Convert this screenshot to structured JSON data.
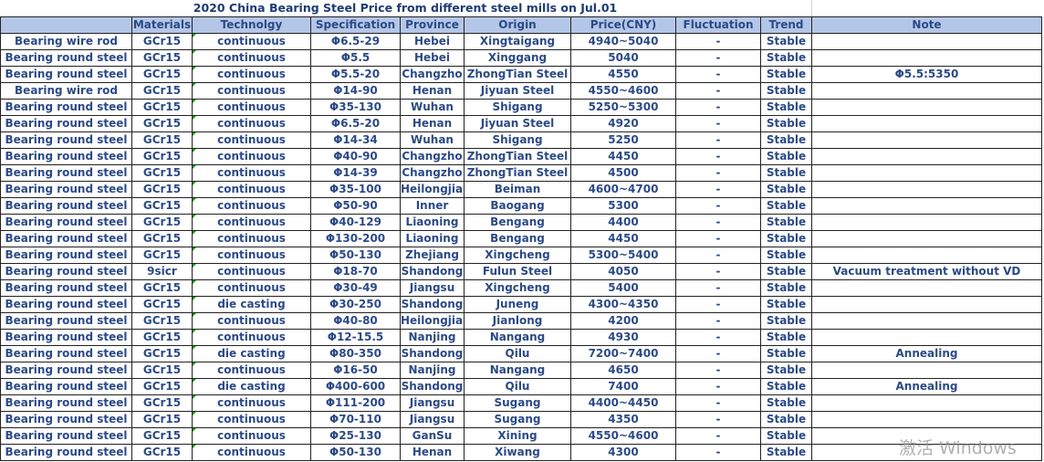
{
  "title": "2020 China Bearing Steel Price from different steel mills on  Jul.01",
  "headers": [
    "",
    "Materials",
    "Technolgy",
    "Specification",
    "Province",
    "Origin",
    "Price(CNY)",
    "Fluctuation",
    "Trend",
    "Note"
  ],
  "rows": [
    [
      "Bearing wire rod",
      "GCr15",
      "continuous",
      "Φ6.5-29",
      "Hebei",
      "Xingtaigang",
      "4940~5040",
      "-",
      "Stable",
      ""
    ],
    [
      "Bearing round steel",
      "GCr15",
      "continuous",
      "Φ5.5",
      "Hebei",
      "Xinggang",
      "5040",
      "-",
      "Stable",
      ""
    ],
    [
      "Bearing round steel",
      "GCr15",
      "continuous",
      "Φ5.5-20",
      "Changzho",
      "ZhongTian Steel",
      "4550",
      "-",
      "Stable",
      "Φ5.5:5350"
    ],
    [
      "Bearing wire rod",
      "GCr15",
      "continuous",
      "Φ14-90",
      "Henan",
      "Jiyuan Steel",
      "4550~4600",
      "-",
      "Stable",
      ""
    ],
    [
      "Bearing round steel",
      "GCr15",
      "continuous",
      "Φ35-130",
      "Wuhan",
      "Shigang",
      "5250~5300",
      "-",
      "Stable",
      ""
    ],
    [
      "Bearing round steel",
      "GCr15",
      "continuous",
      "Φ6.5-20",
      "Henan",
      "Jiyuan Steel",
      "4920",
      "-",
      "Stable",
      ""
    ],
    [
      "Bearing round steel",
      "GCr15",
      "continuous",
      "Φ14-34",
      "Wuhan",
      "Shigang",
      "5250",
      "-",
      "Stable",
      ""
    ],
    [
      "Bearing round steel",
      "GCr15",
      "continuous",
      "Φ40-90",
      "Changzho",
      "ZhongTian Steel",
      "4450",
      "-",
      "Stable",
      ""
    ],
    [
      "Bearing round steel",
      "GCr15",
      "continuous",
      "Φ14-39",
      "Changzho",
      "ZhongTian Steel",
      "4500",
      "-",
      "Stable",
      ""
    ],
    [
      "Bearing round steel",
      "GCr15",
      "continuous",
      "Φ35-100",
      "Heilongjian",
      "Beiman",
      "4600~4700",
      "-",
      "Stable",
      ""
    ],
    [
      "Bearing round steel",
      "GCr15",
      "continuous",
      "Φ50-90",
      "Inner",
      "Baogang",
      "5300",
      "-",
      "Stable",
      ""
    ],
    [
      "Bearing round steel",
      "GCr15",
      "continuous",
      "Φ40-129",
      "Liaoning",
      "Bengang",
      "4400",
      "-",
      "Stable",
      ""
    ],
    [
      "Bearing round steel",
      "GCr15",
      "continuous",
      "Φ130-200",
      "Liaoning",
      "Bengang",
      "4450",
      "-",
      "Stable",
      ""
    ],
    [
      "Bearing round steel",
      "GCr15",
      "continuous",
      "Φ50-130",
      "Zhejiang",
      "Xingcheng",
      "5300~5400",
      "-",
      "Stable",
      ""
    ],
    [
      "Bearing round steel",
      "9sicr",
      "continuous",
      "Φ18-70",
      "Shandong",
      "Fulun Steel",
      "4050",
      "-",
      "Stable",
      "Vacuum treatment  without VD"
    ],
    [
      "Bearing round steel",
      "GCr15",
      "continuous",
      "Φ30-49",
      "Jiangsu",
      "Xingcheng",
      "5400",
      "-",
      "Stable",
      ""
    ],
    [
      "Bearing round steel",
      "GCr15",
      "die casting",
      "Φ30-250",
      "Shandong",
      "Juneng",
      "4300~4350",
      "-",
      "Stable",
      ""
    ],
    [
      "Bearing round steel",
      "GCr15",
      "continuous",
      "Φ40-80",
      "Heilongjian",
      "Jianlong",
      "4200",
      "-",
      "Stable",
      ""
    ],
    [
      "Bearing round steel",
      "GCr15",
      "continuous",
      "Φ12-15.5",
      "Nanjing",
      "Nangang",
      "4930",
      "-",
      "Stable",
      ""
    ],
    [
      "Bearing round steel",
      "GCr15",
      "die casting",
      "Φ80-350",
      "Shandong",
      "Qilu",
      "7200~7400",
      "-",
      "Stable",
      "Annealing"
    ],
    [
      "Bearing round steel",
      "GCr15",
      "continuous",
      "Φ16-50",
      "Nanjing",
      "Nangang",
      "4650",
      "-",
      "Stable",
      ""
    ],
    [
      "Bearing round steel",
      "GCr15",
      "die casting",
      "Φ400-600",
      "Shandong",
      "Qilu",
      "7400",
      "-",
      "Stable",
      "Annealing"
    ],
    [
      "Bearing round steel",
      "GCr15",
      "continuous",
      "Φ111-200",
      "Jiangsu",
      "Sugang",
      "4400~4450",
      "-",
      "Stable",
      ""
    ],
    [
      "Bearing round steel",
      "GCr15",
      "continuous",
      "Φ70-110",
      "Jiangsu",
      "Sugang",
      "4350",
      "-",
      "Stable",
      ""
    ],
    [
      "Bearing round steel",
      "GCr15",
      "continuous",
      "Φ25-130",
      "GanSu",
      "Xining",
      "4550~4600",
      "-",
      "Stable",
      ""
    ],
    [
      "Bearing round steel",
      "GCr15",
      "continuous",
      "Φ50-130",
      "Henan",
      "Xiwang",
      "4300",
      "-",
      "Stable",
      ""
    ]
  ],
  "watermark": "激活 Windows"
}
